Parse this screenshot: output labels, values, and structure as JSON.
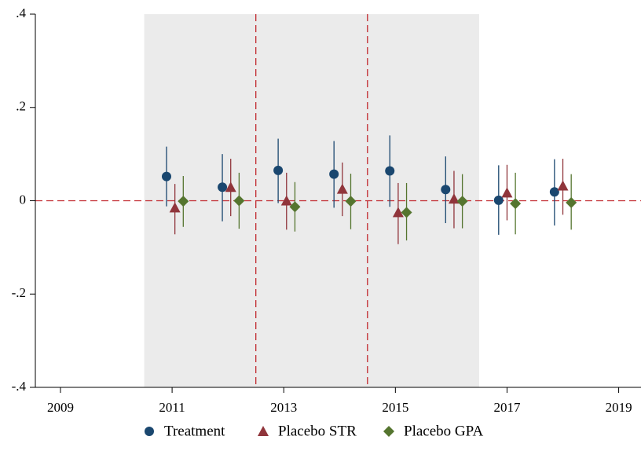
{
  "chart_data": {
    "type": "coefplot",
    "xlim": [
      2008.55,
      2019.4
    ],
    "ylim": [
      -0.4,
      0.4
    ],
    "xticks": [
      2009,
      2011,
      2013,
      2015,
      2017,
      2019
    ],
    "yticks": [
      {
        "value": -0.4,
        "label": "-.4"
      },
      {
        "value": -0.2,
        "label": "-.2"
      },
      0,
      {
        "value": 0.2,
        "label": ".2"
      },
      {
        "value": 0.4,
        "label": ".4"
      }
    ],
    "shaded": [
      2010.5,
      2016.5
    ],
    "vlines": [
      2012.5,
      2014.5
    ],
    "hline": 0,
    "reference_color": "#c1272d",
    "shade_color": "#ebebeb",
    "legend": "bottom",
    "series": [
      {
        "name": "Treatment",
        "color": "#1a476f",
        "marker": "circle",
        "x": [
          2010.9,
          2011.9,
          2012.9,
          2013.9,
          2014.9,
          2015.9,
          2016.85,
          2017.85
        ],
        "values": [
          0.052,
          0.029,
          0.065,
          0.057,
          0.064,
          0.024,
          0.001,
          0.019
        ],
        "lower": [
          -0.012,
          -0.044,
          -0.005,
          -0.015,
          -0.013,
          -0.048,
          -0.073,
          -0.053
        ],
        "upper": [
          0.116,
          0.1,
          0.133,
          0.128,
          0.14,
          0.095,
          0.076,
          0.089
        ]
      },
      {
        "name": "Placebo STR",
        "color": "#90353b",
        "marker": "triangle",
        "x": [
          2011.05,
          2012.05,
          2013.05,
          2014.05,
          2015.05,
          2016.05,
          2017.0,
          2018.0
        ],
        "values": [
          -0.015,
          0.029,
          0.0,
          0.025,
          -0.025,
          0.004,
          0.017,
          0.032
        ],
        "lower": [
          -0.072,
          -0.033,
          -0.062,
          -0.033,
          -0.093,
          -0.059,
          -0.042,
          -0.03
        ],
        "upper": [
          0.036,
          0.09,
          0.06,
          0.082,
          0.038,
          0.064,
          0.077,
          0.09
        ]
      },
      {
        "name": "Placebo GPA",
        "color": "#55752f",
        "marker": "diamond",
        "x": [
          2011.2,
          2012.2,
          2013.2,
          2014.2,
          2015.2,
          2016.2,
          2017.15,
          2018.15
        ],
        "values": [
          -0.001,
          0.0,
          -0.013,
          -0.001,
          -0.025,
          -0.001,
          -0.006,
          -0.004
        ],
        "lower": [
          -0.056,
          -0.06,
          -0.066,
          -0.061,
          -0.085,
          -0.059,
          -0.072,
          -0.062
        ],
        "upper": [
          0.053,
          0.06,
          0.04,
          0.058,
          0.038,
          0.057,
          0.06,
          0.057
        ]
      }
    ]
  }
}
